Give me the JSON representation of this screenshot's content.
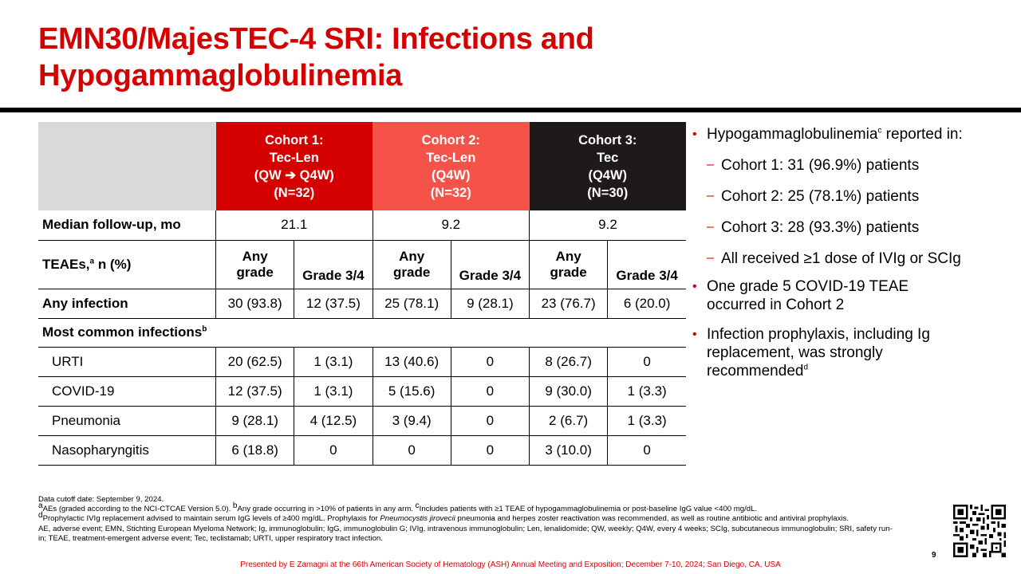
{
  "title": "EMN30/MajesTEC-4 SRI: Infections and Hypogammaglobulinemia",
  "table": {
    "cohorts": [
      {
        "name": "Cohort 1:",
        "drug": "Tec-Len",
        "schedule": "(QW ➔ Q4W)",
        "n": "(N=32)",
        "color": "#d50000"
      },
      {
        "name": "Cohort 2:",
        "drug": "Tec-Len",
        "schedule": "(Q4W)",
        "n": "(N=32)",
        "color": "#f5534a"
      },
      {
        "name": "Cohort 3:",
        "drug": "Tec",
        "schedule": "(Q4W)",
        "n": "(N=30)",
        "color": "#1e1a1a"
      }
    ],
    "followup": {
      "label": "Median follow-up, mo",
      "values": [
        "21.1",
        "9.2",
        "9.2"
      ]
    },
    "teae": {
      "label": "TEAEs,",
      "sup": "a",
      "label_suffix": " n (%)",
      "any_line1": "Any",
      "any_line2": "grade",
      "grade34": "Grade 3/4"
    },
    "any_infection": {
      "label": "Any infection",
      "values": [
        "30 (93.8)",
        "12 (37.5)",
        "25 (78.1)",
        "9 (28.1)",
        "23 (76.7)",
        "6 (20.0)"
      ]
    },
    "most_common": {
      "label": "Most common infections",
      "sup": "b"
    },
    "rows": [
      {
        "label": "URTI",
        "values": [
          "20 (62.5)",
          "1 (3.1)",
          "13 (40.6)",
          "0",
          "8 (26.7)",
          "0"
        ]
      },
      {
        "label": "COVID-19",
        "values": [
          "12 (37.5)",
          "1 (3.1)",
          "5 (15.6)",
          "0",
          "9 (30.0)",
          "1 (3.3)"
        ]
      },
      {
        "label": "Pneumonia",
        "values": [
          "9 (28.1)",
          "4 (12.5)",
          "3 (9.4)",
          "0",
          "2 (6.7)",
          "1 (3.3)"
        ]
      },
      {
        "label": "Nasopharyngitis",
        "values": [
          "6 (18.8)",
          "0",
          "0",
          "0",
          "3 (10.0)",
          "0"
        ]
      }
    ]
  },
  "bullets": {
    "b1_pre": "Hypogammaglobulinemia",
    "b1_sup": "c",
    "b1_post": " reported in:",
    "sub": [
      "Cohort 1: 31 (96.9%) patients",
      "Cohort 2: 25 (78.1%) patients",
      "Cohort 3: 28 (93.3%) patients",
      "All received ≥1 dose of IVIg or SCIg"
    ],
    "b2": "One grade 5 COVID-19 TEAE occurred in Cohort 2",
    "b3": "Infection prophylaxis, including Ig replacement, was strongly recommended",
    "b3_sup": "d"
  },
  "footnotes": {
    "cutoff": "Data cutoff date: September 9, 2024.",
    "a_sup": "a",
    "a": "AEs (graded according to the NCI-CTCAE Version 5.0). ",
    "b_sup": "b",
    "b": "Any grade occurring in >10% of patients in any arm. ",
    "c_sup": "c",
    "c": "Includes patients with ≥1 TEAE of hypogammaglobulinemia or post-baseline IgG value <400 mg/dL.",
    "d_sup": "d",
    "d_pre": "Prophylactic IVIg replacement advised to maintain serum IgG levels of ≥400 mg/dL. Prophylaxis for ",
    "d_italic": "Pneumocystis jirovecii",
    "d_post": " pneumonia and herpes zoster reactivation was recommended, as well as routine antibiotic and antiviral prophylaxis.",
    "abbrev": "AE, adverse event; EMN, Stichting European Myeloma Network; Ig, immunoglobulin; IgG, immunoglobulin G; IVIg, intravenous immunoglobulin; Len, lenalidomide; QW, weekly; Q4W, every 4 weeks; SCIg, subcutaneous immunoglobulin; SRI, safety run-in; TEAE, treatment-emergent adverse event; Tec, teclistamab; URTI, upper respiratory tract infection."
  },
  "presented": "Presented by E Zamagni at the 66th American Society of Hematology (ASH) Annual Meeting and Exposition; December 7-10, 2024; San Diego, CA, USA",
  "page_number": "9",
  "colors": {
    "accent": "#d50000",
    "cohort2": "#f5534a",
    "cohort3": "#1e1a1a",
    "header_gray": "#d9d9d9"
  },
  "icons": {
    "qr": "qr-code-icon"
  }
}
